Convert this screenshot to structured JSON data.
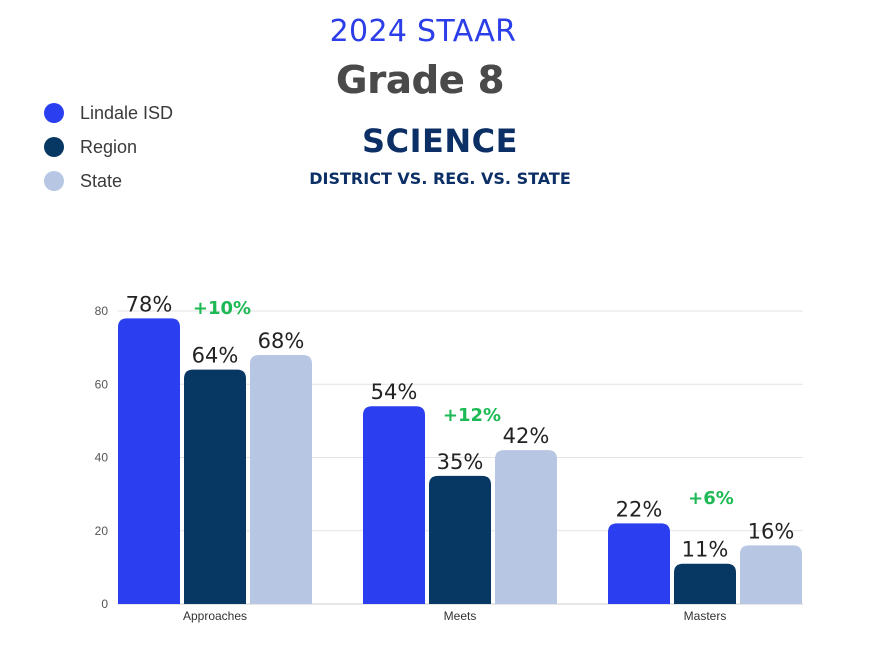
{
  "header": {
    "year_title": "2024 STAAR",
    "grade": "Grade 8",
    "subject": "SCIENCE",
    "comparison": "DISTRICT VS. REG. VS. STATE"
  },
  "legend": [
    {
      "name": "Lindale ISD",
      "color": "#2b3ef0"
    },
    {
      "name": "Region",
      "color": "#073763"
    },
    {
      "name": "State",
      "color": "#b6c6e3"
    }
  ],
  "chart_data": {
    "type": "bar",
    "categories": [
      "Approaches",
      "Meets",
      "Masters"
    ],
    "series": [
      {
        "name": "Lindale ISD",
        "values": [
          78,
          54,
          22
        ],
        "labels": [
          "78%",
          "54%",
          "22%"
        ],
        "color": "#2b3ef0"
      },
      {
        "name": "Region",
        "values": [
          64,
          35,
          11
        ],
        "labels": [
          "64%",
          "35%",
          "11%"
        ],
        "color": "#073763"
      },
      {
        "name": "State",
        "values": [
          68,
          42,
          16
        ],
        "labels": [
          "68%",
          "42%",
          "16%"
        ],
        "color": "#b6c6e3"
      }
    ],
    "annotations": [
      "+10%",
      "+12%",
      "+6%"
    ],
    "annotation_color": "#1db954",
    "ylim": [
      0,
      80
    ],
    "yticks": [
      "0",
      "20",
      "40",
      "60",
      "80"
    ],
    "grid": true,
    "legend_position": "top-left"
  }
}
